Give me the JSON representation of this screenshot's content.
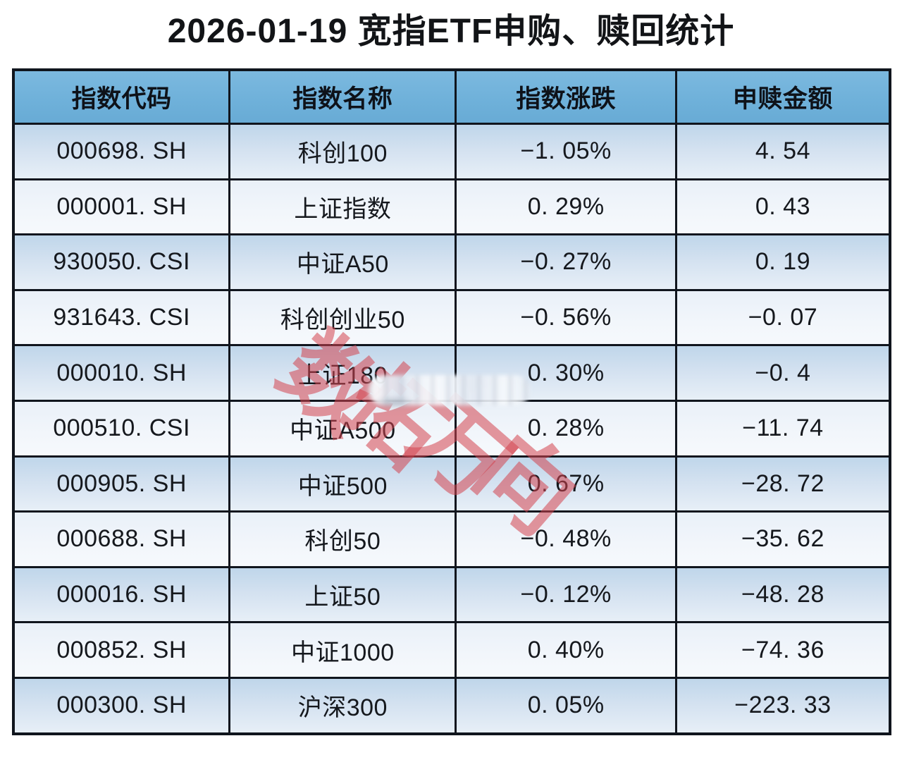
{
  "page": {
    "title": "2026-01-19 宽指ETF申购、赎回统计"
  },
  "table": {
    "columns": [
      "指数代码",
      "指数名称",
      "指数涨跌",
      "申赎金额"
    ],
    "rows": [
      [
        "000698. SH",
        "科创100",
        "−1. 05%",
        "4. 54"
      ],
      [
        "000001. SH",
        "上证指数",
        "0. 29%",
        "0. 43"
      ],
      [
        "930050. CSI",
        "中证A50",
        "−0. 27%",
        "0. 19"
      ],
      [
        "931643. CSI",
        "科创创业50",
        "−0. 56%",
        "−0. 07"
      ],
      [
        "000010. SH",
        "上证180",
        "0. 30%",
        "−0. 4"
      ],
      [
        "000510. CSI",
        "中证A500",
        "0. 28%",
        "−11. 74"
      ],
      [
        "000905. SH",
        "中证500",
        "0. 67%",
        "−28. 72"
      ],
      [
        "000688. SH",
        "科创50",
        "−0. 48%",
        "−35. 62"
      ],
      [
        "000016. SH",
        "上证50",
        "−0. 12%",
        "−48. 28"
      ],
      [
        "000852. SH",
        "中证1000",
        "0. 40%",
        "−74. 36"
      ],
      [
        "000300. SH",
        "沪深300",
        "0. 05%",
        "−223. 33"
      ]
    ]
  },
  "watermark": {
    "text": "数拓万向",
    "color": "#d4444e"
  },
  "colors": {
    "header_bg": "#6fb1da",
    "odd_row_top": "#bfd6ea",
    "odd_row_bottom": "#e7eff7",
    "even_row_top": "#e9f0f8",
    "even_row_bottom": "#f6f9fc",
    "border": "#10151d",
    "text": "#15181d"
  },
  "chart_data": {
    "type": "table",
    "title": "2026-01-19 宽指ETF申购、赎回统计",
    "columns": [
      "指数代码",
      "指数名称",
      "指数涨跌",
      "申赎金额"
    ],
    "index_codes": [
      "000698.SH",
      "000001.SH",
      "930050.CSI",
      "931643.CSI",
      "000010.SH",
      "000510.CSI",
      "000905.SH",
      "000688.SH",
      "000016.SH",
      "000852.SH",
      "000300.SH"
    ],
    "index_names": [
      "科创100",
      "上证指数",
      "中证A50",
      "科创创业50",
      "上证180",
      "中证A500",
      "中证500",
      "科创50",
      "上证50",
      "中证1000",
      "沪深300"
    ],
    "change_pct": [
      -1.05,
      0.29,
      -0.27,
      -0.56,
      0.3,
      0.28,
      0.67,
      -0.48,
      -0.12,
      0.4,
      0.05
    ],
    "net_flow": [
      4.54,
      0.43,
      0.19,
      -0.07,
      -0.4,
      -11.74,
      -28.72,
      -35.62,
      -48.28,
      -74.36,
      -223.33
    ],
    "sort": "net_flow descending",
    "grid": true,
    "legend": false
  }
}
